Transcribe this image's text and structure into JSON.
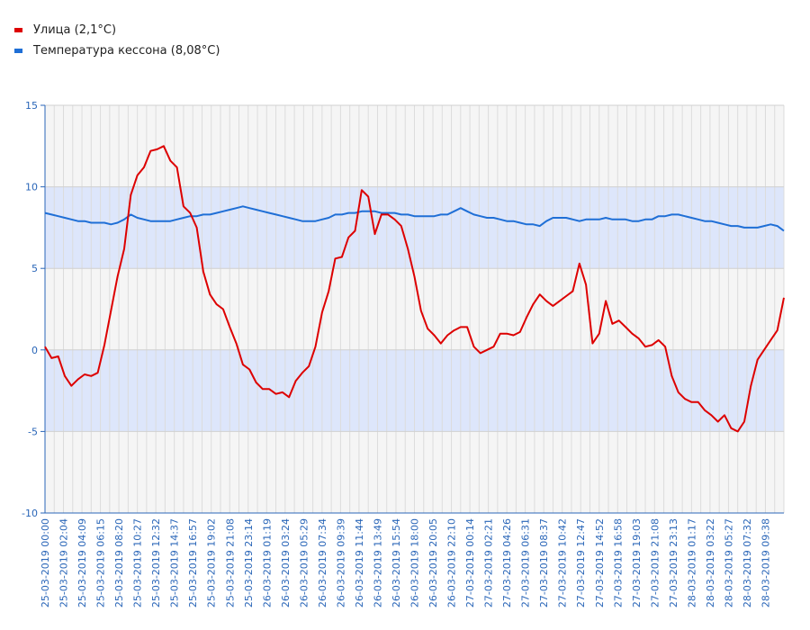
{
  "legend": {
    "items": [
      {
        "label": "Улица (2,1°C)",
        "color": "#dd0000"
      },
      {
        "label": "Температура кессона (8,08°C)",
        "color": "#1f6fd6"
      }
    ]
  },
  "chart_data": {
    "type": "line",
    "title": "",
    "xlabel": "",
    "ylabel": "",
    "ylim": [
      -10,
      15
    ],
    "yticks": [
      15,
      10,
      5,
      0,
      -5,
      -10
    ],
    "grid": true,
    "legend_position": "top-left",
    "x_tick_labels": [
      "25-03-2019 00:00",
      "25-03-2019 02:04",
      "25-03-2019 04:09",
      "25-03-2019 06:15",
      "25-03-2019 08:20",
      "25-03-2019 10:27",
      "25-03-2019 12:32",
      "25-03-2019 14:37",
      "25-03-2019 16:57",
      "25-03-2019 19:02",
      "25-03-2019 21:08",
      "25-03-2019 23:14",
      "26-03-2019 01:19",
      "26-03-2019 03:24",
      "26-03-2019 05:29",
      "26-03-2019 07:34",
      "26-03-2019 09:39",
      "26-03-2019 11:44",
      "26-03-2019 13:49",
      "26-03-2019 15:54",
      "26-03-2019 18:00",
      "26-03-2019 20:05",
      "26-03-2019 22:10",
      "27-03-2019 00:14",
      "27-03-2019 02:21",
      "27-03-2019 04:26",
      "27-03-2019 06:31",
      "27-03-2019 08:37",
      "27-03-2019 10:42",
      "27-03-2019 12:47",
      "27-03-2019 14:52",
      "27-03-2019 16:58",
      "27-03-2019 19:03",
      "27-03-2019 21:08",
      "27-03-2019 23:13",
      "28-03-2019 01:17",
      "28-03-2019 03:22",
      "28-03-2019 05:27",
      "28-03-2019 07:32",
      "28-03-2019 09:38"
    ],
    "series": [
      {
        "name": "Улица (2,1°C)",
        "color": "#dd0000",
        "values": [
          0.2,
          -0.5,
          -0.4,
          -1.6,
          -2.2,
          -1.8,
          -1.5,
          -1.6,
          -1.4,
          0.3,
          2.4,
          4.5,
          6.2,
          9.5,
          10.7,
          11.2,
          12.2,
          12.3,
          12.5,
          11.6,
          11.2,
          8.8,
          8.4,
          7.5,
          4.8,
          3.4,
          2.8,
          2.5,
          1.4,
          0.4,
          -0.9,
          -1.2,
          -2.0,
          -2.4,
          -2.4,
          -2.7,
          -2.6,
          -2.9,
          -1.9,
          -1.4,
          -1.0,
          0.2,
          2.3,
          3.6,
          5.6,
          5.7,
          6.9,
          7.3,
          9.8,
          9.4,
          7.1,
          8.3,
          8.3,
          8.0,
          7.6,
          6.2,
          4.5,
          2.4,
          1.3,
          0.9,
          0.4,
          0.9,
          1.2,
          1.4,
          1.4,
          0.2,
          -0.2,
          0.0,
          0.2,
          1.0,
          1.0,
          0.9,
          1.1,
          2.0,
          2.8,
          3.4,
          3.0,
          2.7,
          3.0,
          3.3,
          3.6,
          5.3,
          4.0,
          0.4,
          1.0,
          3.0,
          1.6,
          1.8,
          1.4,
          1.0,
          0.7,
          0.2,
          0.3,
          0.6,
          0.2,
          -1.6,
          -2.6,
          -3.0,
          -3.2,
          -3.2,
          -3.7,
          -4.0,
          -4.4,
          -4.0,
          -4.8,
          -5.0,
          -4.4,
          -2.2,
          -0.6,
          0.0,
          0.6,
          1.2,
          3.2
        ]
      },
      {
        "name": "Температура кессона (8,08°C)",
        "color": "#1f6fd6",
        "values": [
          8.4,
          8.3,
          8.2,
          8.1,
          8.0,
          7.9,
          7.9,
          7.8,
          7.8,
          7.8,
          7.7,
          7.8,
          8.0,
          8.3,
          8.1,
          8.0,
          7.9,
          7.9,
          7.9,
          7.9,
          8.0,
          8.1,
          8.2,
          8.2,
          8.3,
          8.3,
          8.4,
          8.5,
          8.6,
          8.7,
          8.8,
          8.7,
          8.6,
          8.5,
          8.4,
          8.3,
          8.2,
          8.1,
          8.0,
          7.9,
          7.9,
          7.9,
          8.0,
          8.1,
          8.3,
          8.3,
          8.4,
          8.4,
          8.5,
          8.5,
          8.5,
          8.4,
          8.4,
          8.4,
          8.3,
          8.3,
          8.2,
          8.2,
          8.2,
          8.2,
          8.3,
          8.3,
          8.5,
          8.7,
          8.5,
          8.3,
          8.2,
          8.1,
          8.1,
          8.0,
          7.9,
          7.9,
          7.8,
          7.7,
          7.7,
          7.6,
          7.9,
          8.1,
          8.1,
          8.1,
          8.0,
          7.9,
          8.0,
          8.0,
          8.0,
          8.1,
          8.0,
          8.0,
          8.0,
          7.9,
          7.9,
          8.0,
          8.0,
          8.2,
          8.2,
          8.3,
          8.3,
          8.2,
          8.1,
          8.0,
          7.9,
          7.9,
          7.8,
          7.7,
          7.6,
          7.6,
          7.5,
          7.5,
          7.5,
          7.6,
          7.7,
          7.6,
          7.3
        ]
      }
    ]
  }
}
